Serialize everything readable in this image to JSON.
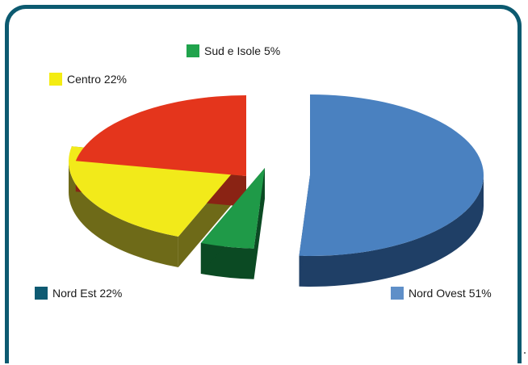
{
  "chart_data": {
    "type": "pie",
    "title": "",
    "slices": [
      {
        "label": "Nord Ovest",
        "value": 51,
        "legend": "Nord Ovest 51%",
        "color": "#4a81c0",
        "side_color": "#1f3f66"
      },
      {
        "label": "Sud e Isole",
        "value": 5,
        "legend": "Sud e Isole 5%",
        "color": "#1f9a48",
        "side_color": "#0b4a23"
      },
      {
        "label": "Centro",
        "value": 22,
        "legend": "Centro 22%",
        "color": "#f2ea1a",
        "side_color": "#6e6a18"
      },
      {
        "label": "Nord Est",
        "value": 22,
        "legend": "Nord Est 22%",
        "color": "#e4351c",
        "side_color": "#8a2314"
      }
    ],
    "legend_swatch_colors": {
      "Nord Ovest": "#5f8fc8",
      "Sud e Isole": "#20a34c",
      "Centro": "#f4ec12",
      "Nord Est": "#0e5a72"
    },
    "exploded": true,
    "three_d": true
  },
  "frame_color": "#0c5a70"
}
